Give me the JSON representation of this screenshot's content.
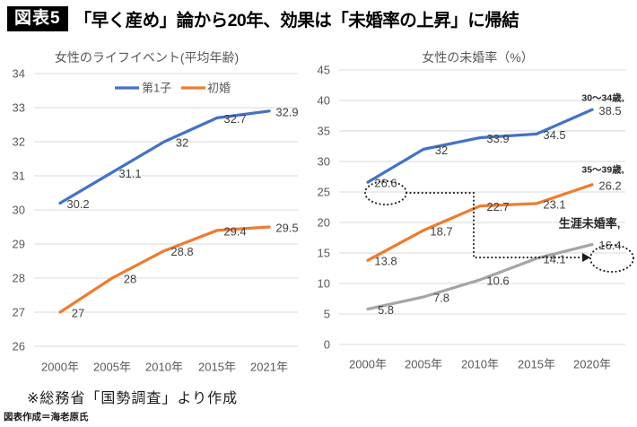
{
  "header": {
    "badge": "図表5",
    "title": "「早く産め」論から20年、効果は「未婚率の上昇」に帰結"
  },
  "footer": {
    "source_note": "※総務省「国勢調査」より作成",
    "credit": "図表作成＝海老原氏"
  },
  "colors": {
    "blue": "#4472C4",
    "orange": "#ED7D31",
    "gray": "#A5A5A5",
    "gridline": "#D9D9D9",
    "axis_text": "#595959",
    "label_text": "#404040",
    "annotation": "#1a1a1a"
  },
  "chart_data": [
    {
      "type": "line",
      "title": "女性のライフイベント(平均年齢)",
      "categories": [
        "2000年",
        "2005年",
        "2010年",
        "2015年",
        "2021年"
      ],
      "series": [
        {
          "name": "第1子",
          "color_key": "blue",
          "values": [
            30.2,
            31.1,
            32,
            32.7,
            32.9
          ]
        },
        {
          "name": "初婚",
          "color_key": "orange",
          "values": [
            27,
            28,
            28.8,
            29.4,
            29.5
          ]
        }
      ],
      "ylim": [
        26,
        34
      ],
      "ytick_step": 1,
      "grid": true,
      "legend_position": "top",
      "data_labels": true
    },
    {
      "type": "line",
      "title": "女性の未婚率（%）",
      "categories": [
        "2000年",
        "2005年",
        "2010年",
        "2015年",
        "2020年"
      ],
      "series": [
        {
          "name": "30〜34歳,",
          "color_key": "blue",
          "values": [
            26.6,
            32,
            33.9,
            34.5,
            38.5
          ]
        },
        {
          "name": "35〜39歳,",
          "color_key": "orange",
          "values": [
            13.8,
            18.7,
            22.7,
            23.1,
            26.2
          ]
        },
        {
          "name": "生涯未婚率,",
          "color_key": "gray",
          "values": [
            5.8,
            7.8,
            10.6,
            14.1,
            16.4
          ]
        }
      ],
      "ylim": [
        0,
        45
      ],
      "ytick_step": 5,
      "grid": true,
      "legend_position": "series-end-labels",
      "data_labels": true,
      "annotation": {
        "type": "dotted-cohort-link",
        "from_value": "26.6",
        "to_value": "16.4",
        "description": "dotted ellipse around the 2000 value 26.6 (30〜34歳) linked by a dotted arrow to an ellipse at the 2020 value 16.4 (生涯未婚率)"
      }
    }
  ]
}
